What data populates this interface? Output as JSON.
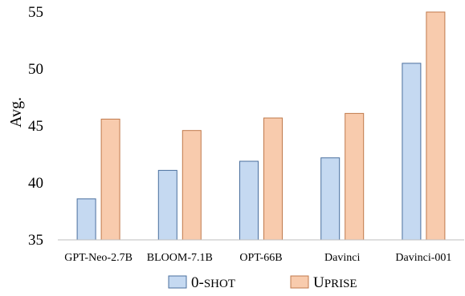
{
  "chart_data": {
    "type": "bar",
    "title": "",
    "xlabel": "",
    "ylabel": "Avg.",
    "ylim": [
      35,
      55
    ],
    "yticks": [
      35,
      40,
      45,
      50,
      55
    ],
    "categories": [
      "GPT-Neo-2.7B",
      "BLOOM-7.1B",
      "OPT-66B",
      "Davinci",
      "Davinci-001"
    ],
    "series": [
      {
        "name": "0-SHOT",
        "values": [
          38.6,
          41.1,
          41.9,
          42.2,
          50.5
        ],
        "fill": "#c5d9f1",
        "stroke": "#4a6f9e"
      },
      {
        "name": "UPRISE",
        "values": [
          45.6,
          44.6,
          45.7,
          46.1,
          55.0
        ],
        "fill": "#f8cbad",
        "stroke": "#c07a4c"
      }
    ],
    "legend": {
      "position": "bottom",
      "items": [
        {
          "first": "0-",
          "rest": "SHOT"
        },
        {
          "first": "U",
          "rest": "PRISE"
        }
      ]
    },
    "grid": false
  }
}
